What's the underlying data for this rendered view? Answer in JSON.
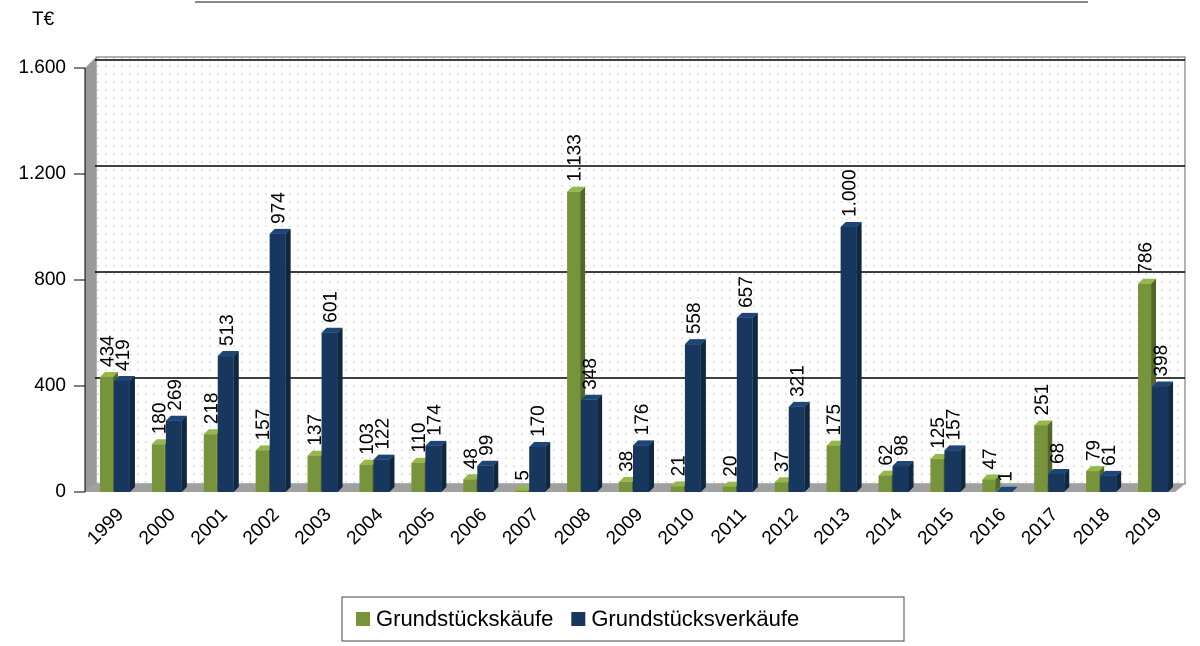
{
  "chart_data": {
    "type": "bar3d",
    "y_label": "T€",
    "categories": [
      "1999",
      "2000",
      "2001",
      "2002",
      "2003",
      "2004",
      "2005",
      "2006",
      "2007",
      "2008",
      "2009",
      "2010",
      "2011",
      "2012",
      "2013",
      "2014",
      "2015",
      "2016",
      "2017",
      "2018",
      "2019"
    ],
    "series": [
      {
        "name": "Grundstückskäufe",
        "color": "#77933c",
        "values": [
          434,
          180,
          218,
          157,
          137,
          103,
          110,
          48,
          5,
          1133,
          38,
          21,
          20,
          37,
          175,
          62,
          125,
          47,
          251,
          79,
          786
        ],
        "value_labels": [
          "434",
          "180",
          "218",
          "157",
          "137",
          "103",
          "110",
          "48",
          "5",
          "1.133",
          "38",
          "21",
          "20",
          "37",
          "175",
          "62",
          "125",
          "47",
          "251",
          "79",
          "786"
        ]
      },
      {
        "name": "Grundstücksverkäufe",
        "color": "#17375e",
        "values": [
          419,
          269,
          513,
          974,
          601,
          122,
          174,
          99,
          170,
          348,
          176,
          558,
          657,
          321,
          1000,
          98,
          157,
          1,
          68,
          61,
          398
        ],
        "value_labels": [
          "419",
          "269",
          "513",
          "974",
          "601",
          "122",
          "174",
          "99",
          "170",
          "348",
          "176",
          "558",
          "657",
          "321",
          "1.000",
          "98",
          "157",
          "1",
          "68",
          "61",
          "398"
        ]
      }
    ],
    "ylim": [
      0,
      1600
    ],
    "yticks": [
      0,
      400,
      800,
      {
        "value": 1200,
        "label": "1.200"
      },
      {
        "value": 1600,
        "label": "1.600"
      }
    ],
    "grid": true
  }
}
